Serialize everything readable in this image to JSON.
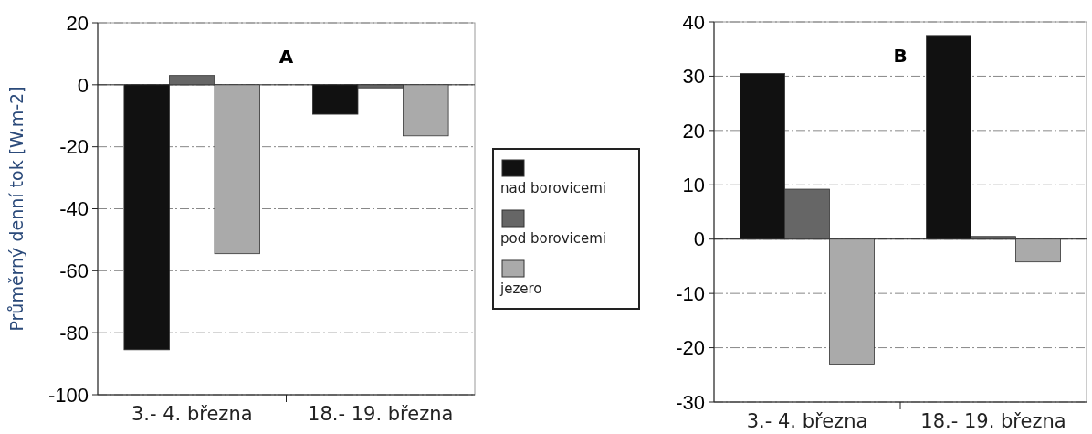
{
  "chart_data": [
    {
      "type": "bar",
      "title": "A",
      "ylabel": "Průměrný denní tok [W.m-2]",
      "categories": [
        "3.- 4. března",
        "18.- 19. března"
      ],
      "series": [
        {
          "name": "nad borovicemi",
          "color": "#111111",
          "values": [
            -85.5,
            -9.5
          ]
        },
        {
          "name": "pod borovicemi",
          "color": "#666666",
          "values": [
            3,
            -1
          ]
        },
        {
          "name": "jezero",
          "color": "#aaaaaa",
          "values": [
            -54.5,
            -16.5
          ]
        }
      ],
      "ylim": [
        -100,
        20
      ],
      "yticks": [
        -100,
        -80,
        -60,
        -40,
        -20,
        0,
        20
      ],
      "grid": "y",
      "legend": "right"
    },
    {
      "type": "bar",
      "title": "B",
      "categories": [
        "3.- 4. března",
        "18.- 19. března"
      ],
      "series": [
        {
          "color": "#111111",
          "values": [
            30.5,
            37.5
          ]
        },
        {
          "color": "#666666",
          "values": [
            9.2,
            0.5
          ]
        },
        {
          "color": "#aaaaaa",
          "values": [
            -23,
            -4.2
          ]
        }
      ],
      "ylim": [
        -30,
        40
      ],
      "yticks": [
        -30,
        -20,
        -10,
        0,
        10,
        20,
        30,
        40
      ],
      "grid": "y"
    }
  ]
}
